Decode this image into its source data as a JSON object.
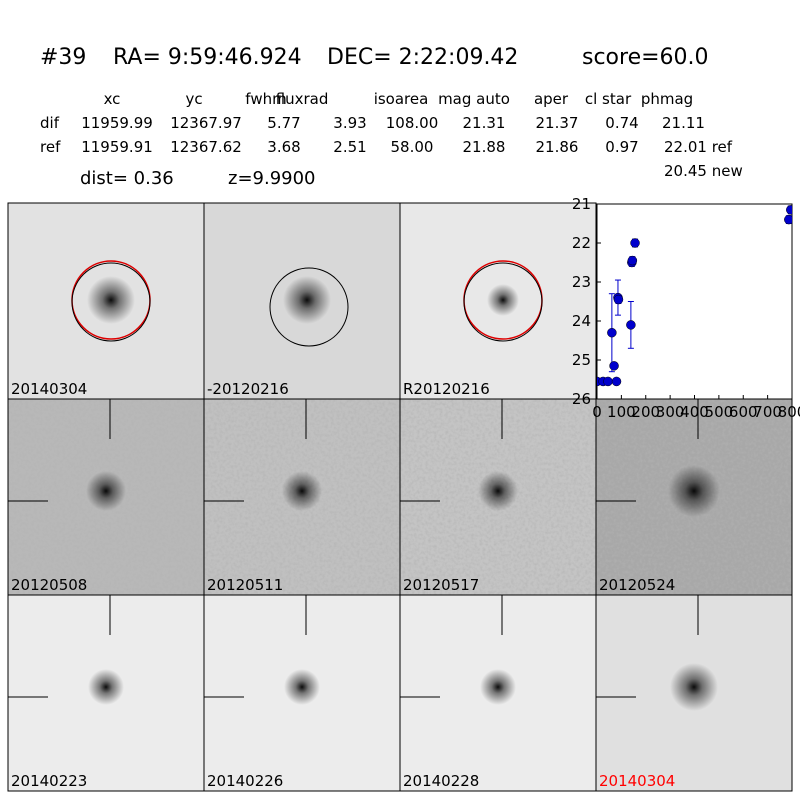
{
  "header": {
    "id": "#39",
    "ra": "RA= 9:59:46.924",
    "dec": "DEC= 2:22:09.42",
    "score": "score=60.0"
  },
  "table": {
    "columns": [
      "xc",
      "yc",
      "fwhm",
      "fluxrad",
      "isoarea",
      "mag auto",
      "aper",
      "cl star",
      "phmag"
    ],
    "rows": [
      [
        "dif",
        "11959.99",
        "12367.97",
        "5.77",
        "3.93",
        "108.00",
        "21.31",
        "21.37",
        "0.74",
        "21.11"
      ],
      [
        "ref",
        "11959.91",
        "12367.62",
        "3.68",
        "2.51",
        "58.00",
        "21.88",
        "21.86",
        "0.97",
        "22.01 ref"
      ]
    ],
    "extra": "20.45 new"
  },
  "dist": "dist=  0.36",
  "z": "z=9.9900",
  "stamps": [
    "20140304",
    "-20120216",
    "R20120216",
    "20120508",
    "20120511",
    "20120517",
    "20120524",
    "20140223",
    "20140226",
    "20140228",
    "20140304"
  ],
  "light_curve": {
    "type": "scatter",
    "color": "#0000cc",
    "x": [
      0,
      25,
      45,
      61,
      70,
      80,
      86,
      88,
      139,
      143,
      145,
      156,
      787,
      795
    ],
    "y": [
      25.55,
      25.55,
      25.55,
      24.3,
      25.15,
      25.55,
      23.4,
      23.45,
      24.1,
      22.5,
      22.45,
      22.0,
      21.4,
      21.15
    ],
    "err": [
      0.05,
      0.05,
      0.05,
      1.0,
      0.05,
      0.05,
      0.45,
      0.1,
      0.6,
      0.1,
      0.1,
      0.1,
      0.1,
      0.1
    ],
    "xlim": [
      0,
      800
    ],
    "ylim": [
      26,
      21
    ],
    "xticks": [
      0,
      100,
      200,
      300,
      400,
      500,
      600,
      700,
      800
    ],
    "yticks": [
      21,
      22,
      23,
      24,
      25,
      26
    ]
  }
}
